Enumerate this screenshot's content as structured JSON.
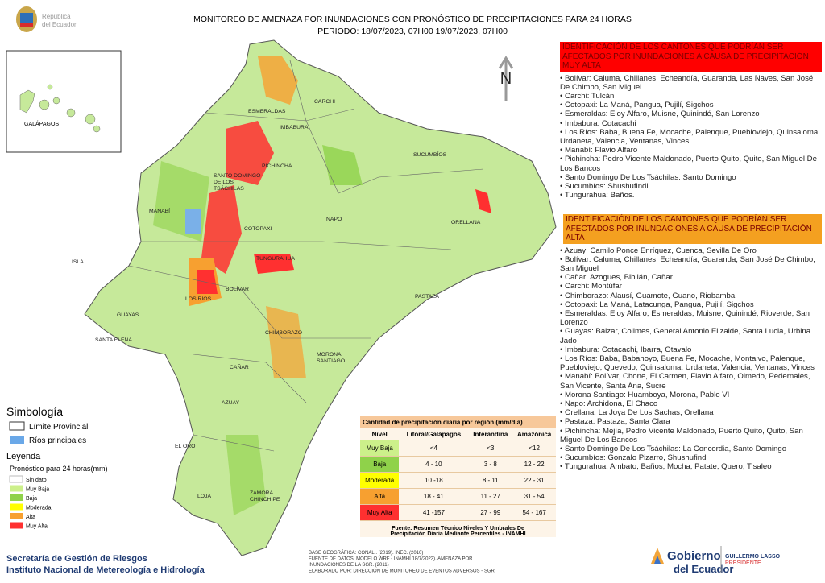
{
  "header": {
    "country_lines": [
      "República",
      "del Ecuador"
    ],
    "title": "MONITOREO DE AMENAZA POR INUNDACIONES  CON PRONÓSTICO DE  PRECIPITACIONES PARA 24 HORAS",
    "period": "PERIODO: 18/07/2023, 07H00 19/07/2023, 07H00"
  },
  "inset": {
    "label": "GALÁPAGOS"
  },
  "north": "N",
  "map_labels": [
    "CARCHI",
    "ESMERALDAS",
    "IMBABURA",
    "SUCUMBÍOS",
    "PICHINCHA",
    "SANTO DOMINGO DE LOS TSÁCHILAS",
    "MANABÍ",
    "NAPO",
    "ORELLANA",
    "COTOPAXI",
    "TUNGURAHUA",
    "ISLA",
    "BOLÍVAR",
    "LOS RÍOS",
    "GUAYAS",
    "PASTAZA",
    "SANTA ELENA",
    "CHIMBORAZO",
    "MORONA SANTIAGO",
    "CAÑAR",
    "AZUAY",
    "EL ORO",
    "LOJA",
    "ZAMORA CHINCHIPE"
  ],
  "sections": [
    {
      "heading": "IDENTIFICACIÓN DE LOS CANTONES QUE PODRÍAN SER AFECTADOS POR INUNDACIONES  A CAUSA DE PRECIPITACIÓN MUY ALTA",
      "items": [
        "Bolívar: Caluma, Chillanes, Echeandía, Guaranda, Las Naves, San José De Chimbo, San Miguel",
        "Carchi: Tulcán",
        "Cotopaxi: La Maná, Pangua, Pujilí, Sigchos",
        "Esmeraldas: Eloy Alfaro, Muisne, Quinindé, San Lorenzo",
        "Imbabura: Cotacachi",
        "Los Ríos: Baba, Buena Fe, Mocache, Palenque, Puebloviejo, Quinsaloma, Urdaneta, Valencia, Ventanas, Vinces",
        "Manabí: Flavio Alfaro",
        "Pichincha: Pedro Vicente Maldonado, Puerto Quito, Quito, San Miguel De Los Bancos",
        "Santo Domingo De Los Tsáchilas: Santo Domingo",
        "Sucumbíos: Shushufindi",
        "Tungurahua: Baños."
      ]
    },
    {
      "heading": "IDENTIFICACIÓN DE LOS CANTONES  QUE  PODRÍAN SER AFECTADOS POR INUNDACIONES  A CAUSA DE PRECIPITACIÓN ALTA",
      "items": [
        "Azuay: Camilo Ponce Enríquez, Cuenca, Sevilla De Oro",
        "Bolívar: Caluma, Chillanes, Echeandía, Guaranda, San José De Chimbo, San Miguel",
        "Cañar: Azogues, Biblián, Cañar",
        "Carchi: Montúfar",
        "Chimborazo: Alausí, Guamote, Guano, Riobamba",
        "Cotopaxi: La Maná, Latacunga, Pangua, Pujilí, Sigchos",
        "Esmeraldas: Eloy Alfaro, Esmeraldas, Muisne, Quinindé, Rioverde, San Lorenzo",
        "Guayas: Balzar, Colimes, General Antonio Elizalde, Santa Lucia, Urbina Jado",
        "Imbabura: Cotacachi, Ibarra, Otavalo",
        "Los Ríos: Baba, Babahoyo, Buena Fe, Mocache, Montalvo, Palenque, Puebloviejo, Quevedo, Quinsaloma, Urdaneta, Valencia, Ventanas, Vinces",
        "Manabí: Bolívar, Chone, El Carmen, Flavio Alfaro, Olmedo, Pedernales, San Vicente, Santa Ana, Sucre",
        "Morona Santiago: Huamboya, Morona, Pablo VI",
        "Napo: Archidona, El Chaco",
        "Orellana: La Joya De Los Sachas, Orellana",
        "Pastaza: Pastaza, Santa Clara",
        "Pichincha: Mejía, Pedro Vicente Maldonado, Puerto Quito, Quito, San Miguel De Los Bancos",
        "Santo Domingo De Los Tsáchilas: La Concordia, Santo Domingo",
        "Sucumbíos: Gonzalo Pizarro, Shushufindi",
        "Tungurahua: Ambato, Baños, Mocha, Patate, Quero, Tisaleo"
      ]
    }
  ],
  "legend": {
    "symbology": "Simbología",
    "boundary": "Límite Provincial",
    "rivers": "Ríos principales",
    "title": "Leyenda",
    "subtitle": "Pronóstico para 24 horas(mm)",
    "classes": [
      "Sin dato",
      "Muy Baja",
      "Baja",
      "Moderada",
      "Alta",
      "Muy Alta"
    ]
  },
  "table": {
    "title": "Cantidad de precipitación diaria por región (mm/dia)",
    "headers": [
      "Nivel",
      "Litoral/Galápagos",
      "Interandina",
      "Amazónica"
    ],
    "rows": [
      [
        "Muy Baja",
        "<4",
        "<3",
        "<12"
      ],
      [
        "Baja",
        "4 - 10",
        "3 - 8",
        "12 - 22"
      ],
      [
        "Moderada",
        "10 -18",
        "8 - 11",
        "22 - 31"
      ],
      [
        "Alta",
        "18 - 41",
        "11 - 27",
        "31 - 54"
      ],
      [
        "Muy Alta",
        "41 -157",
        "27 - 99",
        "54 - 167"
      ]
    ],
    "source": [
      "Fuente: Resumen Técnico Niveles Y Umbrales De",
      "Precipitación Diaria Mediante Percentiles - INAMHI"
    ]
  },
  "footer": {
    "org": [
      "Secretaría de Gestión de Riesgos",
      "Instituto Nacional de Metereología e Hidrología"
    ],
    "notes": [
      "BASE GEOGRÁFICA: CONALI. (2019). INEC. (2010)",
      "FUENTE DE DATOS: MODELO WRF - INAMHI 18/7/2023).  AMENAZA POR",
      "INUNDACIONES DE LA SGR. (2011)",
      "ELABORADO POR: DIRECCIÓN DE MONITOREO DE EVENTOS ADVERSOS - SGR"
    ],
    "gov": [
      "Gobierno",
      "del Ecuador"
    ],
    "president": [
      "GUILLERMO LASSO",
      "PRESIDENTE"
    ]
  }
}
